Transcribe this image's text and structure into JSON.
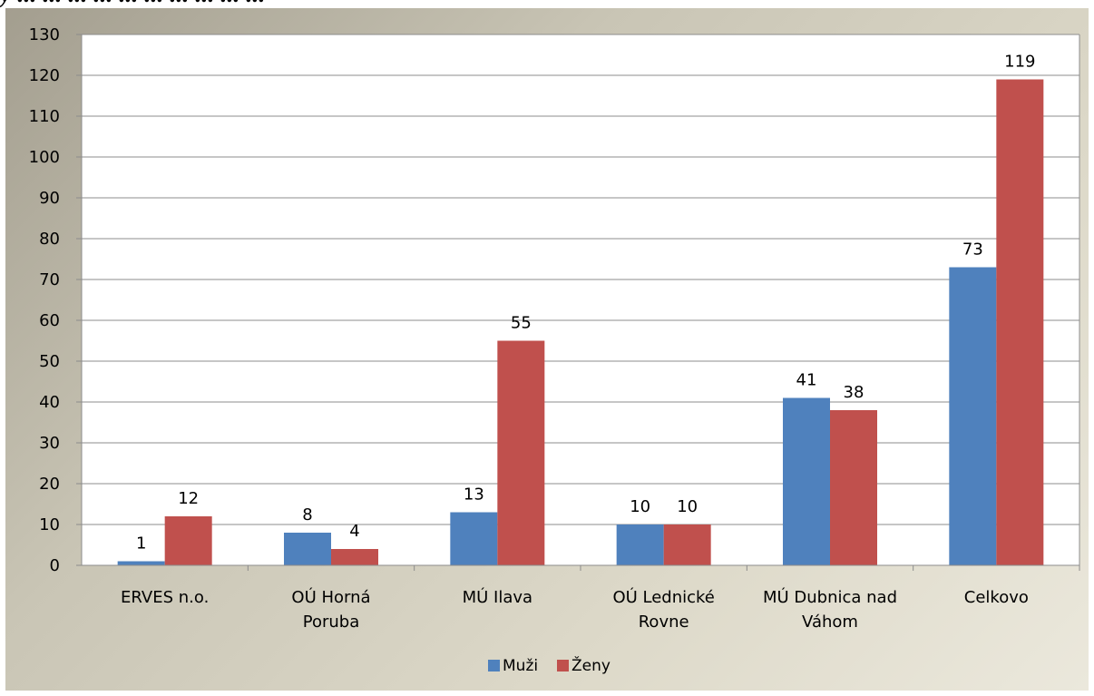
{
  "page": {
    "title_fragment": "y ... ... ... ... ... ... ... ... ... ..."
  },
  "chart_data": {
    "type": "bar",
    "title": "",
    "xlabel": "",
    "ylabel": "",
    "ylim": [
      0,
      130
    ],
    "y_ticks": [
      0,
      10,
      20,
      30,
      40,
      50,
      60,
      70,
      80,
      90,
      100,
      110,
      120,
      130
    ],
    "grid": true,
    "legend_position": "bottom",
    "categories": [
      [
        "ERVES n.o."
      ],
      [
        "OÚ Horná",
        "Poruba"
      ],
      [
        "MÚ Ilava"
      ],
      [
        "OÚ Lednické",
        "Rovne"
      ],
      [
        "MÚ Dubnica nad",
        "Váhom"
      ],
      [
        "Celkovo"
      ]
    ],
    "series": [
      {
        "name": "Muži",
        "color": "#4f81bd",
        "values": [
          1,
          8,
          13,
          10,
          41,
          73
        ]
      },
      {
        "name": "Ženy",
        "color": "#c0504d",
        "values": [
          12,
          4,
          55,
          10,
          38,
          119
        ]
      }
    ]
  }
}
